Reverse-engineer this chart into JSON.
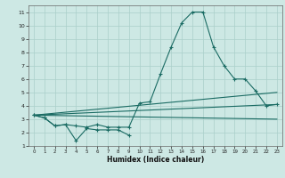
{
  "xlabel": "Humidex (Indice chaleur)",
  "bg_color": "#cde8e4",
  "grid_color": "#aacfca",
  "line_color": "#1a6b63",
  "ylim": [
    1,
    11.5
  ],
  "xlim": [
    -0.5,
    23.5
  ],
  "yticks": [
    1,
    2,
    3,
    4,
    5,
    6,
    7,
    8,
    9,
    10,
    11
  ],
  "xticks": [
    0,
    1,
    2,
    3,
    4,
    5,
    6,
    7,
    8,
    9,
    10,
    11,
    12,
    13,
    14,
    15,
    16,
    17,
    18,
    19,
    20,
    21,
    22,
    23
  ],
  "curve_main_x": [
    0,
    1,
    2,
    3,
    4,
    5,
    6,
    7,
    8,
    9,
    10,
    11,
    12,
    13,
    14,
    15,
    16,
    17,
    18,
    19,
    20,
    21,
    22,
    23
  ],
  "curve_main_y": [
    3.3,
    3.1,
    2.5,
    2.6,
    2.5,
    2.4,
    2.6,
    2.4,
    2.4,
    2.4,
    4.2,
    4.3,
    6.4,
    8.4,
    10.2,
    11.0,
    11.0,
    8.4,
    7.0,
    6.0,
    6.0,
    5.1,
    4.0,
    4.1
  ],
  "curve_low_x": [
    0,
    1,
    2,
    3,
    4,
    5,
    6,
    7,
    8,
    9
  ],
  "curve_low_y": [
    3.3,
    3.1,
    2.5,
    2.6,
    1.4,
    2.3,
    2.2,
    2.2,
    2.2,
    1.8
  ],
  "line1_x": [
    0,
    23
  ],
  "line1_y": [
    3.3,
    5.0
  ],
  "line2_x": [
    0,
    23
  ],
  "line2_y": [
    3.3,
    4.1
  ],
  "line3_x": [
    0,
    23
  ],
  "line3_y": [
    3.3,
    3.0
  ]
}
